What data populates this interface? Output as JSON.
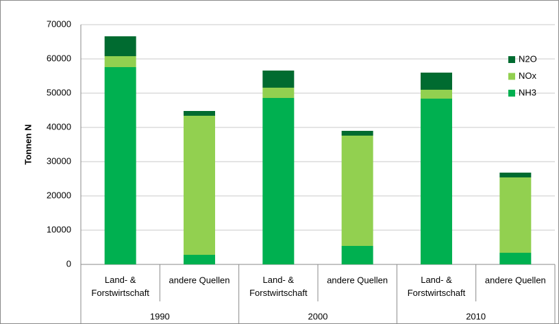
{
  "chart_data": {
    "type": "bar",
    "stacked": true,
    "ylabel": "Tonnen N",
    "categories": [
      "Land- & Forstwirtschaft",
      "andere Quellen",
      "Land- & Forstwirtschaft",
      "andere Quellen",
      "Land- & Forstwirtschaft",
      "andere Quellen"
    ],
    "groups": [
      "1990",
      "2000",
      "2010"
    ],
    "series": [
      {
        "name": "NH3",
        "color": "#00b050",
        "values": [
          57600,
          2800,
          48600,
          5400,
          48400,
          3400
        ]
      },
      {
        "name": "NOx",
        "color": "#92d050",
        "values": [
          3200,
          40600,
          3000,
          32200,
          2600,
          22000
        ]
      },
      {
        "name": "N2O",
        "color": "#006b30",
        "values": [
          5800,
          1400,
          5000,
          1400,
          5000,
          1400
        ]
      }
    ],
    "ylim": [
      0,
      70000
    ],
    "yticks": [
      0,
      10000,
      20000,
      30000,
      40000,
      50000,
      60000,
      70000
    ],
    "grid": true,
    "legend": "upper right"
  }
}
